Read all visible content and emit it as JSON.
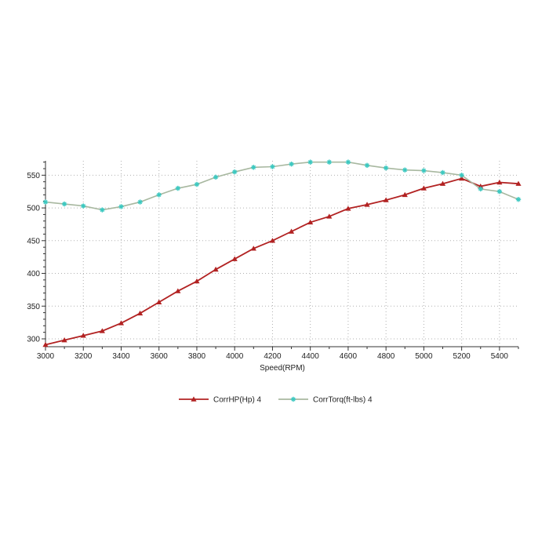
{
  "chart_data": {
    "type": "line",
    "xlabel": "Speed(RPM)",
    "ylabel": "",
    "xlim": [
      3000,
      5500
    ],
    "ylim": [
      288,
      572
    ],
    "x_ticks": [
      3000,
      3200,
      3400,
      3600,
      3800,
      4000,
      4200,
      4400,
      4600,
      4800,
      5000,
      5200,
      5400
    ],
    "x_tick_labels": [
      "3000",
      "3200",
      "3400",
      "3600",
      "3800",
      "4000",
      "4200",
      "4400",
      "4600",
      "4800",
      "5000",
      "5200",
      "5400"
    ],
    "y_ticks": [
      300,
      350,
      400,
      450,
      500,
      550
    ],
    "y_tick_labels": [
      "300",
      "350",
      "400",
      "450",
      "500",
      "550"
    ],
    "grid": true,
    "legend_position": "bottom",
    "x": [
      3000,
      3100,
      3200,
      3300,
      3400,
      3500,
      3600,
      3700,
      3800,
      3900,
      4000,
      4100,
      4200,
      4300,
      4400,
      4500,
      4600,
      4700,
      4800,
      4900,
      5000,
      5100,
      5200,
      5300,
      5400,
      5500
    ],
    "series": [
      {
        "name": "CorrHP(Hp)  4",
        "color": "#b22222",
        "marker": "triangle",
        "values": [
          291,
          298,
          305,
          312,
          324,
          339,
          356,
          373,
          388,
          406,
          422,
          438,
          450,
          464,
          478,
          487,
          499,
          505,
          512,
          520,
          530,
          537,
          545,
          533,
          539,
          537
        ]
      },
      {
        "name": "CorrTorq(ft-lbs)  4",
        "color": "#a8b8a0",
        "marker_color": "#3cc8c0",
        "marker": "star",
        "values": [
          509,
          506,
          503,
          497,
          502,
          509,
          520,
          530,
          536,
          547,
          555,
          562,
          563,
          567,
          570,
          570,
          570,
          565,
          561,
          558,
          557,
          554,
          550,
          529,
          525,
          513
        ]
      }
    ]
  }
}
